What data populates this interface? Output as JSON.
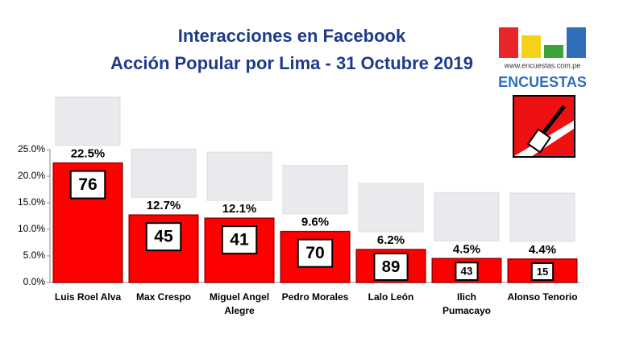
{
  "chart_data": {
    "type": "bar",
    "title": "Interacciones en Facebook",
    "subtitle": "Acción Popular por Lima - 31 Octubre 2019",
    "logo_url": "www.encuestas.com.pe",
    "logo_name": "ENCUESTAS",
    "categories": [
      "Luis Roel Alva",
      "Max Crespo",
      "Miguel Angel\nAlegre",
      "Pedro Morales",
      "Lalo León",
      "Ilich\nPumacayo",
      "Alonso Tenorio"
    ],
    "values": [
      22.5,
      12.7,
      12.1,
      9.6,
      6.2,
      4.5,
      4.4
    ],
    "value_labels": [
      "22.5%",
      "12.7%",
      "12.1%",
      "9.6%",
      "6.2%",
      "4.5%",
      "4.4%"
    ],
    "numbers": [
      76,
      45,
      41,
      70,
      89,
      43,
      15
    ],
    "color": "#ff0000",
    "ylim": [
      0,
      25
    ],
    "yticks": [
      {
        "value": 0,
        "label": "0.0%"
      },
      {
        "value": 5,
        "label": "5.0%"
      },
      {
        "value": 10,
        "label": "10.0%"
      },
      {
        "value": 15,
        "label": "15.0%"
      },
      {
        "value": 20,
        "label": "20.0%"
      },
      {
        "value": 25,
        "label": "25.0%"
      }
    ],
    "grid": false
  }
}
